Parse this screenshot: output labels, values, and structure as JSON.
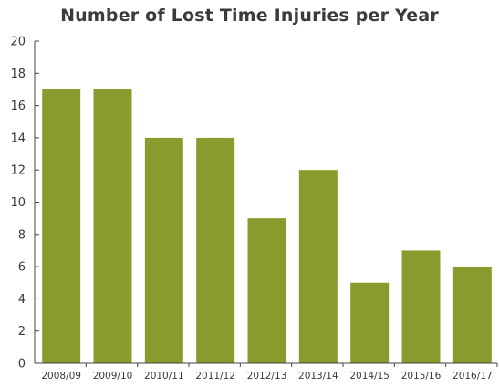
{
  "chart_data": {
    "type": "bar",
    "title": "Number of Lost Time Injuries per Year",
    "xlabel": "",
    "ylabel": "",
    "categories": [
      "2008/09",
      "2009/10",
      "2010/11",
      "2011/12",
      "2012/13",
      "2013/14",
      "2014/15",
      "2015/16",
      "2016/17"
    ],
    "values": [
      17,
      17,
      14,
      14,
      9,
      12,
      5,
      7,
      6
    ],
    "ylim": [
      0,
      20
    ],
    "yticks": [
      "0",
      "2",
      "4",
      "6",
      "8",
      "10",
      "12",
      "14",
      "16",
      "18",
      "20"
    ],
    "grid": false,
    "legend": "none",
    "bar_color": "#8a9a2c"
  }
}
